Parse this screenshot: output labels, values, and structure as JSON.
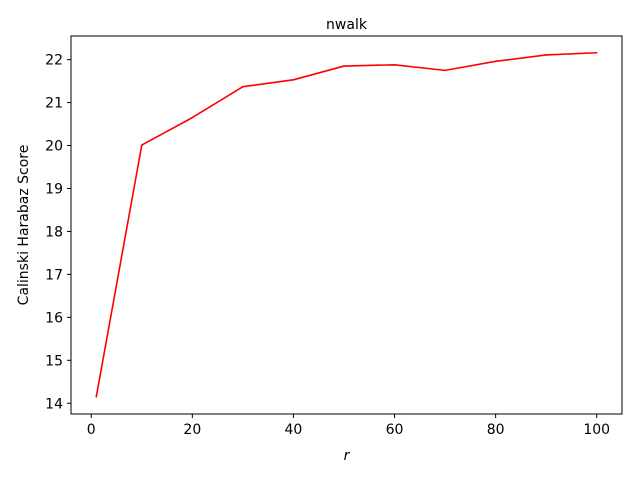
{
  "chart_data": {
    "type": "line",
    "title": "nwalk",
    "xlabel": "r",
    "ylabel": "Calinski Harabaz Score",
    "xlim": [
      -4,
      105
    ],
    "ylim": [
      13.75,
      22.55
    ],
    "xticks": [
      0,
      20,
      40,
      60,
      80,
      100
    ],
    "yticks": [
      14,
      15,
      16,
      17,
      18,
      19,
      20,
      21,
      22
    ],
    "grid": false,
    "series": [
      {
        "color": "#ff0000",
        "x": [
          1,
          10,
          20,
          30,
          40,
          50,
          60,
          70,
          80,
          90,
          100
        ],
        "y": [
          14.15,
          20.01,
          20.65,
          21.37,
          21.53,
          21.85,
          21.88,
          21.75,
          21.96,
          22.11,
          22.16
        ]
      }
    ]
  }
}
